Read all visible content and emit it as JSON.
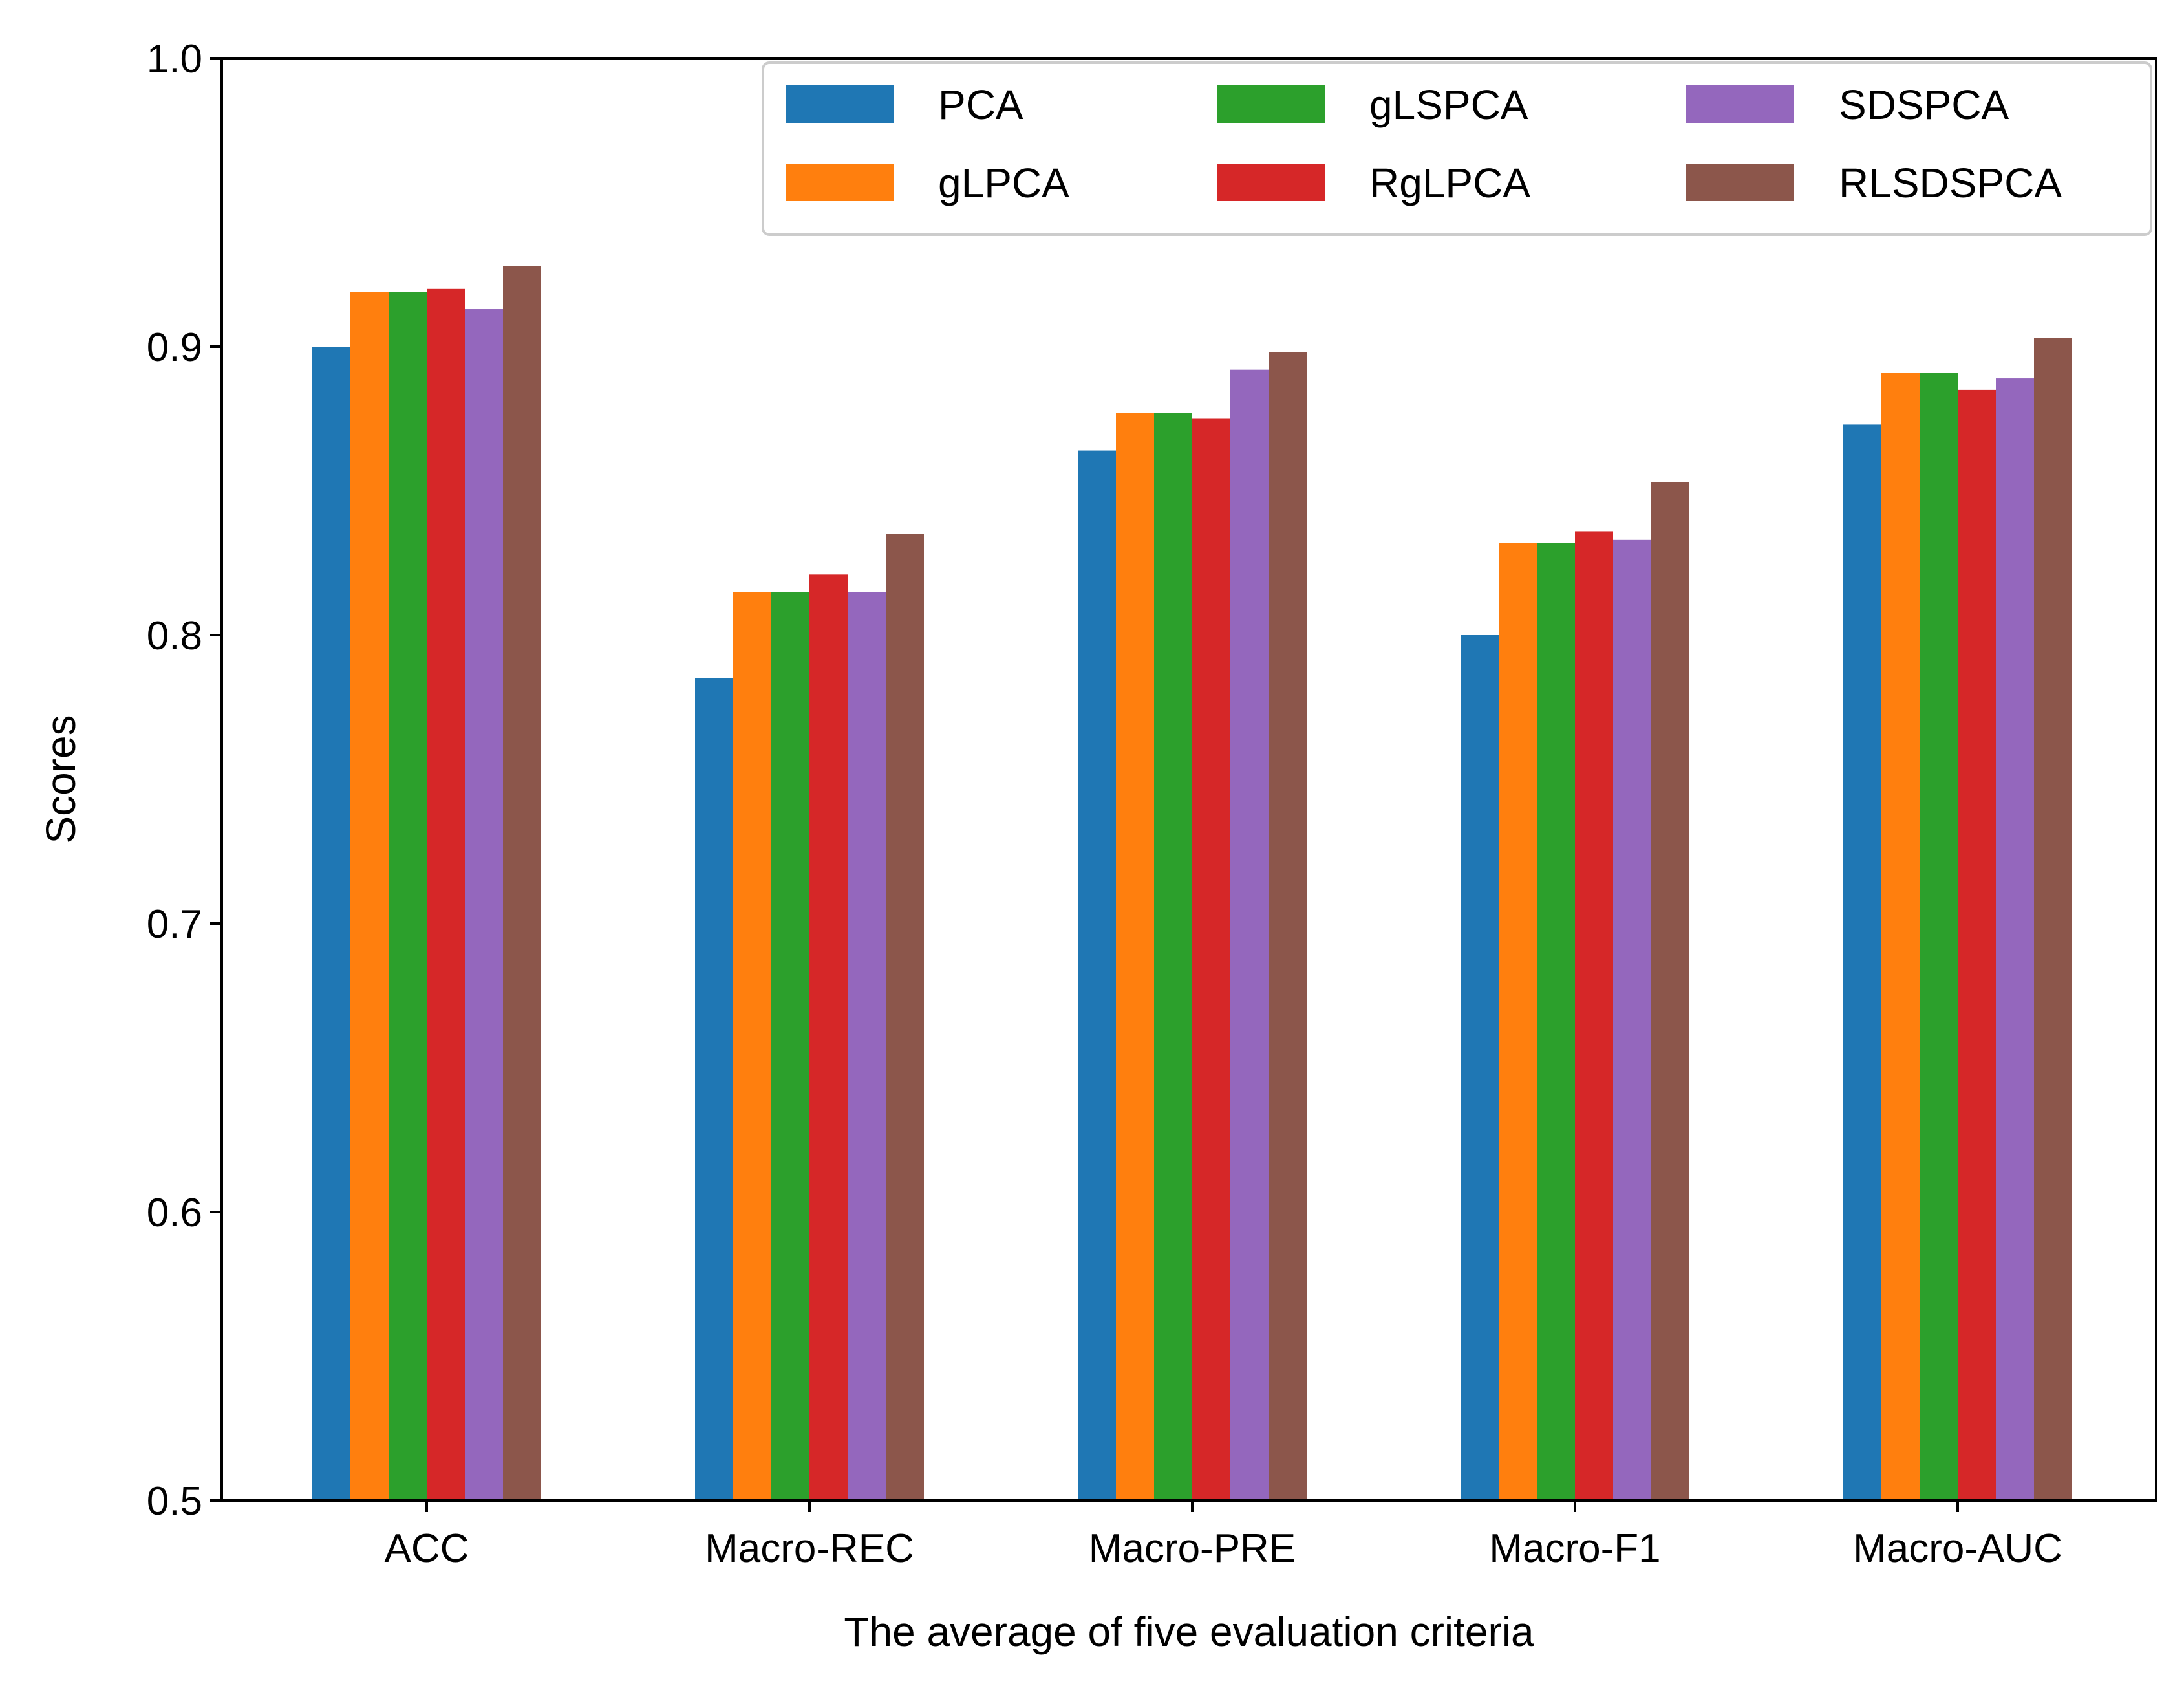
{
  "chart_data": {
    "type": "bar",
    "xlabel": "The average of five evaluation criteria",
    "ylabel": "Scores",
    "ylim": [
      0.5,
      1.0
    ],
    "yticks": [
      "0.5",
      "0.6",
      "0.7",
      "0.8",
      "0.9",
      "1.0"
    ],
    "categories": [
      "ACC",
      "Macro-REC",
      "Macro-PRE",
      "Macro-F1",
      "Macro-AUC"
    ],
    "grid": false,
    "legend": {
      "placement": "top-right",
      "columns": 3
    },
    "series": [
      {
        "name": "PCA",
        "color": "#1f77b4",
        "values": [
          0.9,
          0.785,
          0.864,
          0.8,
          0.873
        ]
      },
      {
        "name": "gLPCA",
        "color": "#ff7f0e",
        "values": [
          0.919,
          0.815,
          0.877,
          0.832,
          0.891
        ]
      },
      {
        "name": "gLSPCA",
        "color": "#2ca02c",
        "values": [
          0.919,
          0.815,
          0.877,
          0.832,
          0.891
        ]
      },
      {
        "name": "RgLPCA",
        "color": "#d62728",
        "values": [
          0.92,
          0.821,
          0.875,
          0.836,
          0.885
        ]
      },
      {
        "name": "SDSPCA",
        "color": "#9467bd",
        "values": [
          0.913,
          0.815,
          0.892,
          0.833,
          0.889
        ]
      },
      {
        "name": "RLSDSPCA",
        "color": "#8c564b",
        "values": [
          0.928,
          0.835,
          0.898,
          0.853,
          0.903
        ]
      }
    ]
  }
}
